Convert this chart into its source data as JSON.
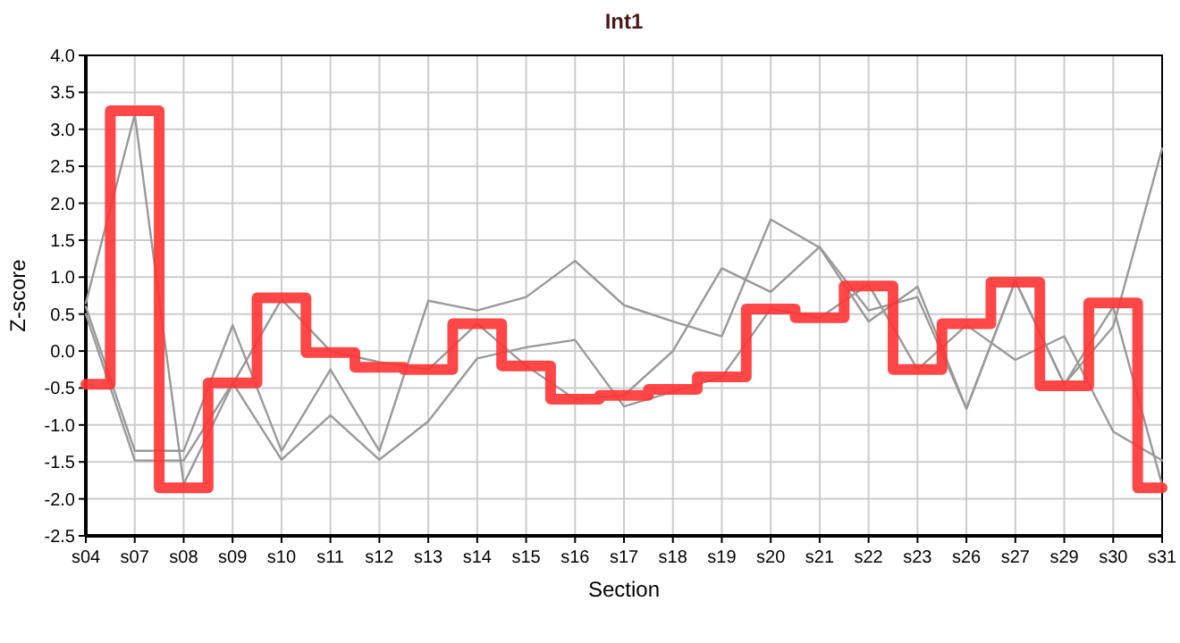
{
  "chart_data": {
    "type": "line",
    "title": "Int1",
    "xlabel": "Section",
    "ylabel": "Z-score",
    "categories": [
      "s04",
      "s07",
      "s08",
      "s09",
      "s10",
      "s11",
      "s12",
      "s13",
      "s14",
      "s15",
      "s16",
      "s17",
      "s18",
      "s19",
      "s20",
      "s21",
      "s22",
      "s23",
      "s26",
      "s27",
      "s29",
      "s30",
      "s31"
    ],
    "series": [
      {
        "color": "#999999",
        "values": [
          0.6,
          -1.35,
          -1.35,
          0.35,
          -1.35,
          -0.25,
          -1.35,
          0.68,
          0.55,
          0.73,
          1.22,
          0.62,
          0.4,
          0.2,
          1.78,
          1.4,
          0.4,
          0.87,
          -0.78,
          0.95,
          -0.45,
          0.33,
          2.74
        ]
      },
      {
        "color": "#999999",
        "values": [
          0.65,
          3.2,
          -1.8,
          -0.45,
          0.7,
          0.0,
          -0.15,
          -0.25,
          0.37,
          -0.2,
          -0.65,
          -0.6,
          0.0,
          1.12,
          0.8,
          1.41,
          0.55,
          0.73,
          -0.78,
          0.95,
          -0.45,
          0.6,
          -1.81
        ]
      },
      {
        "color": "#999999",
        "values": [
          0.5,
          -1.48,
          -1.48,
          -0.43,
          -1.47,
          -0.87,
          -1.47,
          -0.95,
          -0.1,
          0.05,
          0.15,
          -0.75,
          -0.55,
          -0.35,
          0.57,
          0.45,
          0.9,
          -0.25,
          0.35,
          -0.12,
          0.2,
          -1.09,
          -1.48
        ]
      },
      {
        "type": "step",
        "color": "#ff3333",
        "values": [
          -0.45,
          3.25,
          -1.85,
          -0.43,
          0.72,
          -0.02,
          -0.22,
          -0.25,
          0.37,
          -0.2,
          -0.65,
          -0.6,
          -0.52,
          -0.35,
          0.57,
          0.45,
          0.88,
          -0.25,
          0.37,
          0.93,
          -0.47,
          0.65,
          -1.85
        ]
      }
    ],
    "ylim": [
      -2.5,
      4.0
    ],
    "yticks": [
      {
        "value": -2.5,
        "label": "-2.5"
      },
      {
        "value": -2,
        "label": "-2.0"
      },
      {
        "value": -1.5,
        "label": "-1.5"
      },
      {
        "value": -1,
        "label": "-1.0"
      },
      {
        "value": -0.5,
        "label": "-0.5"
      },
      {
        "value": 0,
        "label": "0.0"
      },
      {
        "value": 0.5,
        "label": "0.5"
      },
      {
        "value": 1,
        "label": "1.0"
      },
      {
        "value": 1.5,
        "label": "1.5"
      },
      {
        "value": 2,
        "label": "2.0"
      },
      {
        "value": 2.5,
        "label": "2.5"
      },
      {
        "value": 3,
        "label": "3.0"
      },
      {
        "value": 3.5,
        "label": "3.5"
      },
      {
        "value": 4,
        "label": "4.0"
      }
    ],
    "grid": true
  }
}
